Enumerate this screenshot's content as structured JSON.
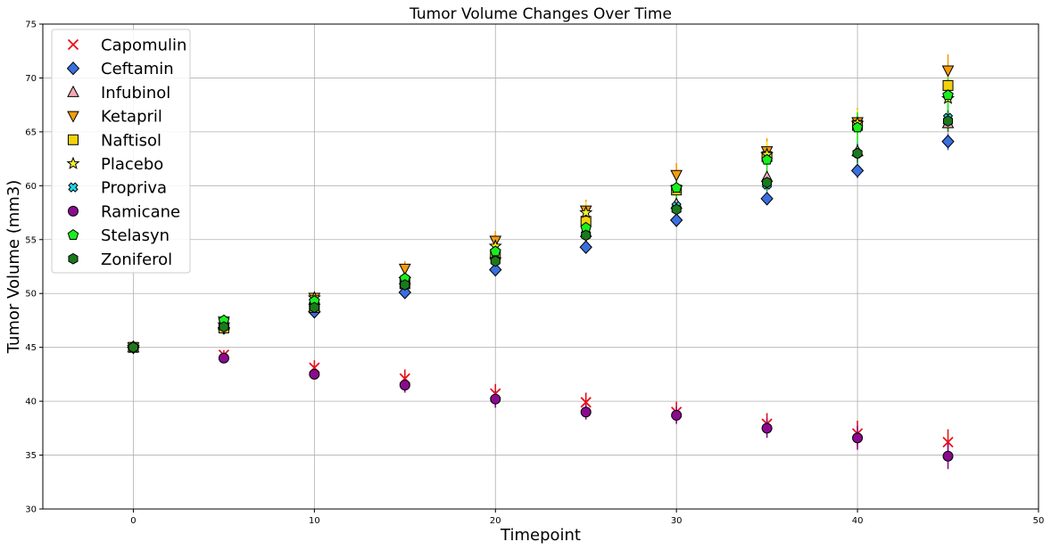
{
  "chart_data": {
    "type": "scatter",
    "title": "Tumor Volume Changes Over Time",
    "xlabel": "Timepoint",
    "ylabel": "Tumor Volume (mm3)",
    "xlim": [
      -5,
      50
    ],
    "ylim": [
      30,
      75
    ],
    "xticks": [
      0,
      10,
      20,
      30,
      40,
      50
    ],
    "yticks": [
      30,
      35,
      40,
      45,
      50,
      55,
      60,
      65,
      70,
      75
    ],
    "grid": true,
    "legend_position": "top-left",
    "x": [
      0,
      5,
      10,
      15,
      20,
      25,
      30,
      35,
      40,
      45
    ],
    "series": [
      {
        "name": "Capomulin",
        "marker": "x",
        "color": "#e8101a",
        "values": [
          45.0,
          44.3,
          43.1,
          42.1,
          40.7,
          39.9,
          39.0,
          37.9,
          37.0,
          36.2
        ],
        "errors": [
          0,
          0.45,
          0.7,
          0.85,
          0.9,
          0.9,
          0.95,
          1.0,
          1.2,
          1.2
        ]
      },
      {
        "name": "Ceftamin",
        "marker": "diamond",
        "color": "#3a6fe0",
        "values": [
          45.0,
          46.8,
          48.3,
          50.1,
          52.2,
          54.3,
          56.8,
          58.8,
          61.4,
          64.1
        ],
        "errors": [
          0,
          0.2,
          0.3,
          0.4,
          0.5,
          0.5,
          0.6,
          0.6,
          0.7,
          0.8
        ]
      },
      {
        "name": "Infubinol",
        "marker": "triangle-up",
        "color": "#f2aab4",
        "values": [
          45.0,
          47.1,
          49.4,
          51.3,
          53.7,
          55.7,
          58.3,
          60.8,
          63.2,
          65.8
        ],
        "errors": [
          0,
          0.2,
          0.3,
          0.4,
          0.5,
          0.6,
          0.7,
          0.8,
          0.9,
          1.0
        ]
      },
      {
        "name": "Ketapril",
        "marker": "triangle-down",
        "color": "#f59d0b",
        "values": [
          45.0,
          47.4,
          49.6,
          52.3,
          54.9,
          57.7,
          61.0,
          63.2,
          65.9,
          70.7
        ],
        "errors": [
          0,
          0.3,
          0.5,
          0.7,
          0.9,
          1.0,
          1.1,
          1.2,
          1.3,
          1.5
        ]
      },
      {
        "name": "Naftisol",
        "marker": "square",
        "color": "#f5d10a",
        "values": [
          45.0,
          46.8,
          48.7,
          50.9,
          53.6,
          56.7,
          59.6,
          62.7,
          65.6,
          69.3
        ],
        "errors": [
          0,
          0.3,
          0.5,
          0.6,
          0.8,
          0.9,
          1.0,
          1.1,
          1.2,
          1.3
        ]
      },
      {
        "name": "Placebo",
        "marker": "star",
        "color": "#f2f02a",
        "values": [
          45.0,
          47.1,
          49.6,
          51.3,
          54.4,
          57.5,
          59.8,
          62.9,
          65.8,
          68.1
        ],
        "errors": [
          0,
          0.2,
          0.4,
          0.6,
          0.8,
          1.0,
          1.1,
          1.2,
          1.3,
          1.4
        ]
      },
      {
        "name": "Propriva",
        "marker": "x-filled",
        "color": "#1fd6e6",
        "values": [
          45.0,
          47.2,
          48.9,
          51.0,
          53.1,
          55.5,
          58.1,
          60.1,
          63.0,
          66.3
        ],
        "errors": [
          0,
          0.2,
          0.4,
          0.6,
          0.7,
          0.8,
          0.9,
          1.0,
          1.1,
          1.2
        ]
      },
      {
        "name": "Ramicane",
        "marker": "circle",
        "color": "#8b0a8f",
        "values": [
          45.0,
          44.0,
          42.5,
          41.5,
          40.2,
          39.0,
          38.7,
          37.5,
          36.6,
          34.9
        ],
        "errors": [
          0,
          0.25,
          0.45,
          0.7,
          0.8,
          0.7,
          0.8,
          0.9,
          1.1,
          1.2
        ]
      },
      {
        "name": "Stelasyn",
        "marker": "pentagon",
        "color": "#18f01c",
        "values": [
          45.0,
          47.5,
          49.3,
          51.4,
          53.9,
          56.1,
          59.8,
          62.4,
          65.4,
          68.4
        ],
        "errors": [
          0,
          0.2,
          0.4,
          0.6,
          0.7,
          0.9,
          1.1,
          1.2,
          1.4,
          1.6
        ]
      },
      {
        "name": "Zoniferol",
        "marker": "hexagon",
        "color": "#1a7a1c",
        "values": [
          45.0,
          46.9,
          48.7,
          50.8,
          53.0,
          55.4,
          57.8,
          60.3,
          63.0,
          66.0
        ],
        "errors": [
          0,
          0.2,
          0.3,
          0.4,
          0.5,
          0.6,
          0.7,
          0.8,
          0.9,
          1.0
        ]
      }
    ]
  }
}
